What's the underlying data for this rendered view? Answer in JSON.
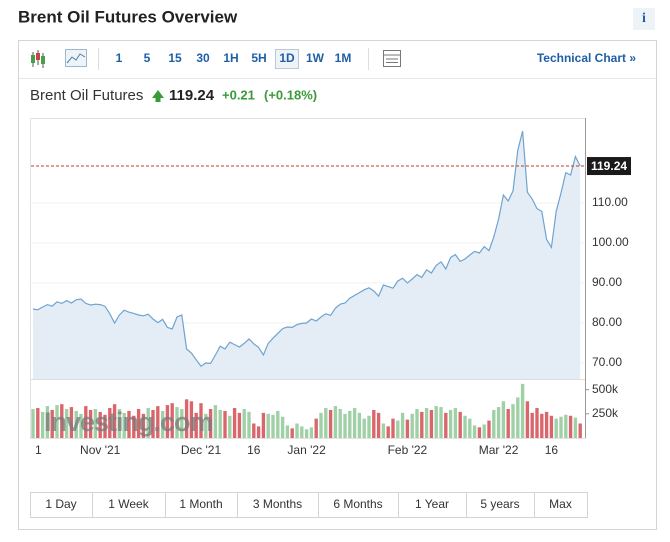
{
  "header": {
    "title": "Brent Oil Futures Overview",
    "info": "i"
  },
  "toolbar": {
    "intervals": [
      "1",
      "5",
      "15",
      "30",
      "1H",
      "5H",
      "1D",
      "1W",
      "1M"
    ],
    "active": "1D",
    "link": "Technical Chart »"
  },
  "quote": {
    "price": 119.24,
    "change": "+0.21",
    "change_percent": "(+0.18%)"
  },
  "ranges": [
    "1 Day",
    "1 Week",
    "1 Month",
    "3 Months",
    "6 Months",
    "1 Year",
    "5 years",
    "Max"
  ],
  "chart_data": {
    "type": "line",
    "watermark": "Investing.com",
    "categories": [
      "1",
      null,
      null,
      null,
      null,
      null,
      null,
      null,
      null,
      null,
      null,
      null,
      null,
      null,
      "Nov '21",
      null,
      null,
      null,
      null,
      null,
      null,
      null,
      null,
      null,
      null,
      null,
      null,
      null,
      null,
      null,
      null,
      null,
      null,
      null,
      null,
      "Dec '21",
      null,
      null,
      null,
      null,
      null,
      null,
      null,
      null,
      null,
      null,
      "16",
      null,
      null,
      null,
      null,
      null,
      null,
      null,
      null,
      null,
      null,
      "Jan '22",
      null,
      null,
      null,
      null,
      null,
      null,
      null,
      null,
      null,
      null,
      null,
      null,
      null,
      null,
      null,
      null,
      null,
      null,
      null,
      null,
      "Feb '22",
      null,
      null,
      null,
      null,
      null,
      null,
      null,
      null,
      null,
      null,
      null,
      null,
      null,
      null,
      null,
      null,
      null,
      null,
      "Mar '22",
      null,
      null,
      null,
      null,
      null,
      null,
      null,
      null,
      null,
      null,
      "16",
      null,
      null,
      null,
      null,
      null,
      null
    ],
    "series": [
      {
        "name": "Brent Oil Futures",
        "color": "#6fa3cf",
        "fill": "#e4edf5",
        "values": [
          83.5,
          83.3,
          84.0,
          84.6,
          84.2,
          85.3,
          84.9,
          85.6,
          85.0,
          85.8,
          86.0,
          84.9,
          84.5,
          84.7,
          84.6,
          84.2,
          82.3,
          80.0,
          82.0,
          83.2,
          82.7,
          82.4,
          82.0,
          81.8,
          82.2,
          81.0,
          80.1,
          80.9,
          78.9,
          78.5,
          81.5,
          82.0,
          73.5,
          72.5,
          70.8,
          69.2,
          70.0,
          69.9,
          72.0,
          74.2,
          73.5,
          75.2,
          74.6,
          74.0,
          74.9,
          76.0,
          74.8,
          73.9,
          72.0,
          74.9,
          76.2,
          77.4,
          78.6,
          79.0,
          78.9,
          79.6,
          79.9,
          80.0,
          81.0,
          80.5,
          81.5,
          82.3,
          81.9,
          83.7,
          84.7,
          85.0,
          86.2,
          86.9,
          87.6,
          88.3,
          88.8,
          88.0,
          86.7,
          89.5,
          89.1,
          88.7,
          90.5,
          91.2,
          90.0,
          91.0,
          92.1,
          91.4,
          93.3,
          92.5,
          94.4,
          95.3,
          93.5,
          96.4,
          97.1,
          95.4,
          96.0,
          97.0,
          97.9,
          97.5,
          99.1,
          98.1,
          101.5,
          106.0,
          112.0,
          110.5,
          113.0,
          123.2,
          127.98,
          112.7,
          111.0,
          108.6,
          107.9,
          100.9,
          98.9,
          107.9,
          112.5,
          117.6,
          117.0,
          121.6,
          119.24
        ]
      }
    ],
    "ylim": [
      66,
      130.75
    ],
    "yticks": [
      {
        "value": 70,
        "label": "70.00"
      },
      {
        "value": 80,
        "label": "80.00"
      },
      {
        "value": 90,
        "label": "90.00"
      },
      {
        "value": 100,
        "label": "100.00"
      },
      {
        "value": 110,
        "label": "110.00"
      }
    ],
    "grid": true,
    "price_line_color": "#c0392b",
    "volume": {
      "up_color": "#9fd0a6",
      "down_color": "#d9666b",
      "ylim": [
        0,
        600000
      ],
      "yticks": [
        {
          "value": 250000,
          "label": "250k"
        },
        {
          "value": 500000,
          "label": "500k"
        }
      ],
      "values": [
        300000,
        310000,
        270000,
        330000,
        290000,
        340000,
        350000,
        300000,
        320000,
        280000,
        250000,
        330000,
        290000,
        300000,
        270000,
        240000,
        310000,
        350000,
        300000,
        260000,
        280000,
        230000,
        300000,
        250000,
        310000,
        290000,
        330000,
        280000,
        340000,
        360000,
        320000,
        300000,
        400000,
        380000,
        260000,
        360000,
        250000,
        300000,
        340000,
        290000,
        280000,
        230000,
        310000,
        260000,
        300000,
        270000,
        150000,
        120000,
        260000,
        250000,
        240000,
        280000,
        220000,
        130000,
        100000,
        150000,
        120000,
        90000,
        110000,
        200000,
        260000,
        310000,
        290000,
        330000,
        300000,
        250000,
        280000,
        310000,
        260000,
        200000,
        230000,
        290000,
        260000,
        150000,
        120000,
        200000,
        180000,
        260000,
        190000,
        250000,
        300000,
        270000,
        310000,
        290000,
        330000,
        320000,
        260000,
        290000,
        310000,
        270000,
        230000,
        200000,
        130000,
        110000,
        140000,
        180000,
        290000,
        320000,
        380000,
        300000,
        350000,
        420000,
        560000,
        380000,
        260000,
        310000,
        250000,
        270000,
        230000,
        200000,
        220000,
        240000,
        230000,
        210000,
        150000
      ]
    }
  }
}
